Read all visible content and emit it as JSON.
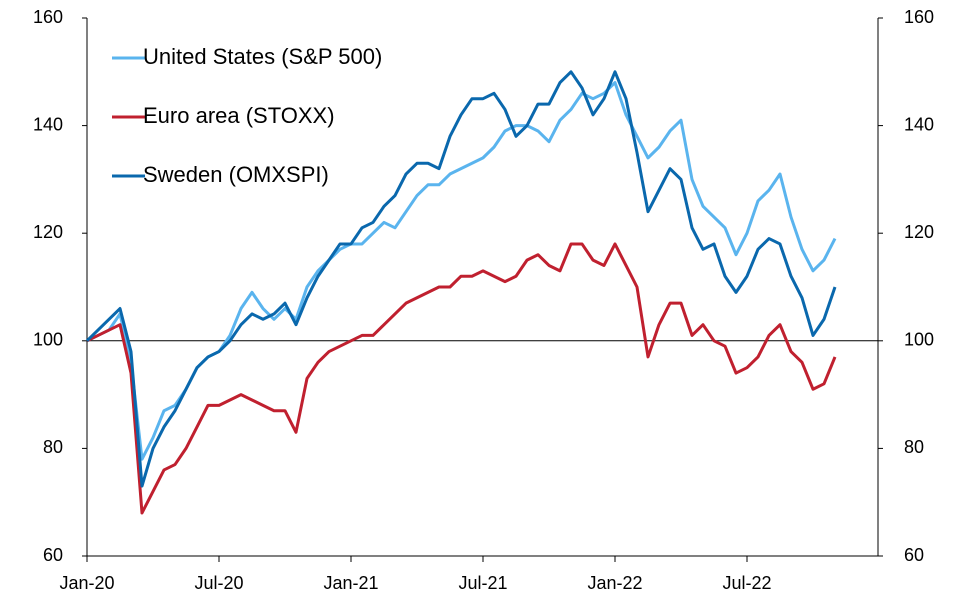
{
  "chart_data": {
    "type": "line",
    "categories": [
      "Jan-20",
      null,
      null,
      null,
      null,
      null,
      null,
      null,
      null,
      null,
      null,
      null,
      "Jul-20",
      null,
      null,
      null,
      null,
      null,
      null,
      null,
      null,
      null,
      null,
      null,
      "Jan-21",
      null,
      null,
      null,
      null,
      null,
      null,
      null,
      null,
      null,
      null,
      null,
      "Jul-21",
      null,
      null,
      null,
      null,
      null,
      null,
      null,
      null,
      null,
      null,
      null,
      "Jan-22",
      null,
      null,
      null,
      null,
      null,
      null,
      null,
      null,
      null,
      null,
      null,
      "Jul-22",
      null,
      null,
      null,
      null,
      null,
      null,
      null,
      null
    ],
    "series": [
      {
        "name": "United States (S&P 500)",
        "color": "#5ab4ee",
        "values": [
          100,
          101,
          102,
          105,
          96,
          78,
          82,
          87,
          88,
          91,
          95,
          97,
          98,
          101,
          106,
          109,
          106,
          104,
          106,
          104,
          110,
          113,
          115,
          117,
          118,
          118,
          120,
          122,
          121,
          124,
          127,
          129,
          129,
          131,
          132,
          133,
          134,
          136,
          139,
          140,
          140,
          139,
          137,
          141,
          143,
          146,
          145,
          146,
          148,
          142,
          138,
          134,
          136,
          139,
          141,
          130,
          125,
          123,
          121,
          116,
          120,
          126,
          128,
          131,
          123,
          117,
          113,
          115,
          119
        ]
      },
      {
        "name": "Euro area (STOXX)",
        "color": "#c0202f",
        "values": [
          100,
          101,
          102,
          103,
          94,
          68,
          72,
          76,
          77,
          80,
          84,
          88,
          88,
          89,
          90,
          89,
          88,
          87,
          87,
          83,
          93,
          96,
          98,
          99,
          100,
          101,
          101,
          103,
          105,
          107,
          108,
          109,
          110,
          110,
          112,
          112,
          113,
          112,
          111,
          112,
          115,
          116,
          114,
          113,
          118,
          118,
          115,
          114,
          118,
          114,
          110,
          97,
          103,
          107,
          107,
          101,
          103,
          100,
          99,
          94,
          95,
          97,
          101,
          103,
          98,
          96,
          91,
          92,
          97
        ]
      },
      {
        "name": "Sweden (OMXSPI)",
        "color": "#0a68ad",
        "values": [
          100,
          102,
          104,
          106,
          98,
          73,
          80,
          84,
          87,
          91,
          95,
          97,
          98,
          100,
          103,
          105,
          104,
          105,
          107,
          103,
          108,
          112,
          115,
          118,
          118,
          121,
          122,
          125,
          127,
          131,
          133,
          133,
          132,
          138,
          142,
          145,
          145,
          146,
          143,
          138,
          140,
          144,
          144,
          148,
          150,
          147,
          142,
          145,
          150,
          145,
          135,
          124,
          128,
          132,
          130,
          121,
          117,
          118,
          112,
          109,
          112,
          117,
          119,
          118,
          112,
          108,
          101,
          104,
          110
        ]
      }
    ],
    "ylim": [
      60,
      160
    ],
    "yticks": [
      60,
      80,
      100,
      120,
      140,
      160
    ],
    "y2lim": [
      60,
      160
    ],
    "y2ticks": [
      60,
      80,
      100,
      120,
      140,
      160
    ],
    "reference_line": 100,
    "legend": "upper left",
    "grid": false
  }
}
